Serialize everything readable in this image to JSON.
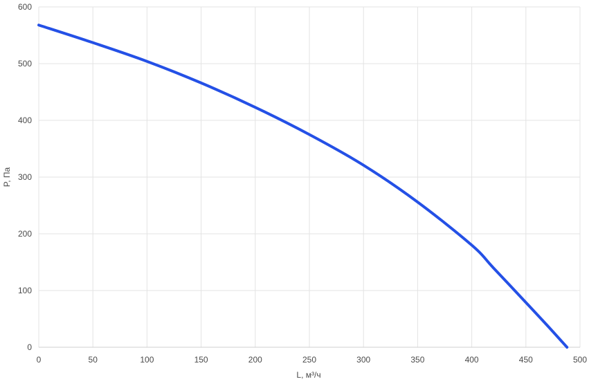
{
  "chart_data": {
    "type": "line",
    "title": "",
    "xlabel": "L, м³/ч",
    "ylabel": "P, Па",
    "xlim": [
      0,
      500
    ],
    "ylim": [
      0,
      600
    ],
    "x_ticks": [
      0,
      50,
      100,
      150,
      200,
      250,
      300,
      350,
      400,
      450,
      500
    ],
    "y_ticks": [
      0,
      100,
      200,
      300,
      400,
      500,
      600
    ],
    "grid": true,
    "legend": "none",
    "series": [
      {
        "color": "#2450e6",
        "points": [
          [
            0,
            568
          ],
          [
            50,
            537
          ],
          [
            100,
            504
          ],
          [
            150,
            466
          ],
          [
            200,
            423
          ],
          [
            250,
            375
          ],
          [
            300,
            321
          ],
          [
            350,
            256
          ],
          [
            400,
            180
          ],
          [
            420,
            140
          ],
          [
            450,
            79
          ],
          [
            470,
            38
          ],
          [
            488,
            0
          ]
        ]
      }
    ]
  }
}
